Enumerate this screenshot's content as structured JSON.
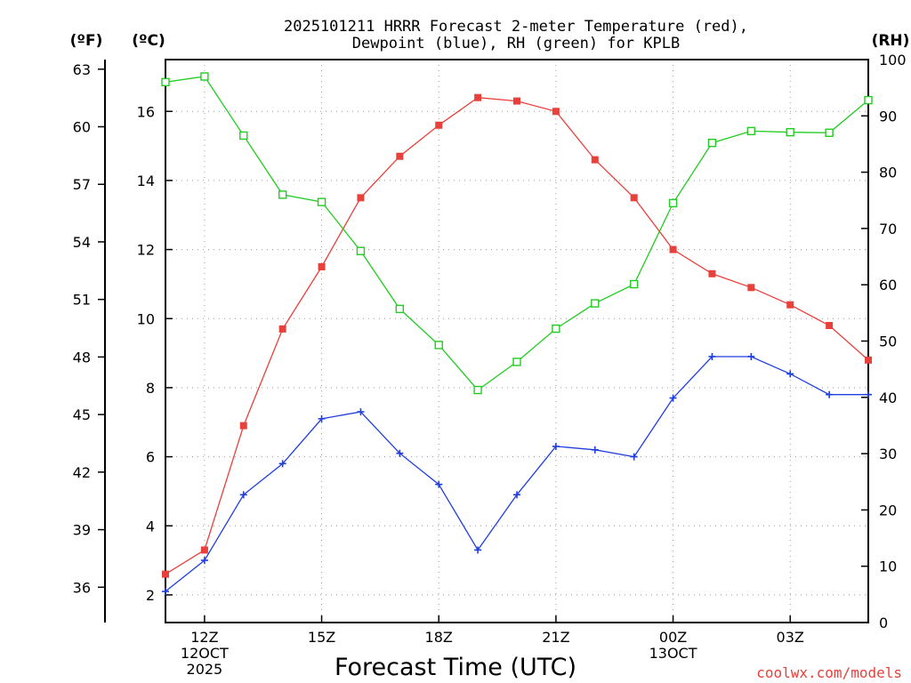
{
  "chart_data": {
    "type": "line",
    "title_lines": [
      "2025101211 HRRR Forecast 2-meter Temperature (red),",
      "Dewpoint (blue), RH (green) for KPLB"
    ],
    "xlabel": "Forecast Time (UTC)",
    "credit": "coolwx.com/models",
    "units": {
      "fahrenheit": "(ºF)",
      "celsius": "(ºC)",
      "rh": "(RH)"
    },
    "x_hours": [
      11,
      12,
      13,
      14,
      15,
      16,
      17,
      18,
      19,
      20,
      21,
      22,
      23,
      24,
      25,
      26,
      27,
      28,
      29
    ],
    "xlim": [
      11,
      29
    ],
    "x_ticks": [
      {
        "hour": 12,
        "lines": [
          "12Z",
          "12OCT",
          "2025"
        ]
      },
      {
        "hour": 15,
        "lines": [
          "15Z"
        ]
      },
      {
        "hour": 18,
        "lines": [
          "18Z"
        ]
      },
      {
        "hour": 21,
        "lines": [
          "21Z"
        ]
      },
      {
        "hour": 24,
        "lines": [
          "00Z",
          "13OCT"
        ]
      },
      {
        "hour": 27,
        "lines": [
          "03Z"
        ]
      }
    ],
    "celsius_axis": {
      "ylim": [
        1.2,
        17.5
      ],
      "ticks": [
        2,
        4,
        6,
        8,
        10,
        12,
        14,
        16
      ]
    },
    "fahrenheit_axis": {
      "ticks": [
        36,
        39,
        42,
        45,
        48,
        51,
        54,
        57,
        60,
        63
      ]
    },
    "rh_axis": {
      "ylim": [
        0,
        100
      ],
      "ticks": [
        0,
        10,
        20,
        30,
        40,
        50,
        60,
        70,
        80,
        90,
        100
      ]
    },
    "series": [
      {
        "name": "Temperature",
        "axis": "celsius",
        "color": "#e8403a",
        "marker": "filled-square",
        "values": [
          2.6,
          3.3,
          6.9,
          9.7,
          11.5,
          13.5,
          14.7,
          15.6,
          16.4,
          16.3,
          16.0,
          14.6,
          13.5,
          12.0,
          11.3,
          10.9,
          10.4,
          9.8,
          8.8
        ]
      },
      {
        "name": "Dewpoint",
        "axis": "celsius",
        "color": "#1e3ee0",
        "marker": "plus",
        "values": [
          2.1,
          3.0,
          4.9,
          5.8,
          7.1,
          7.3,
          6.1,
          5.2,
          3.3,
          4.9,
          6.3,
          6.2,
          6.0,
          7.7,
          8.9,
          8.9,
          8.4,
          7.8,
          7.8
        ]
      },
      {
        "name": "Relative Humidity",
        "axis": "rh",
        "color": "#22cc22",
        "marker": "open-square",
        "values": [
          96,
          97,
          86.5,
          76,
          74.7,
          66,
          55.7,
          49.3,
          41.3,
          46.3,
          52.2,
          56.7,
          60.1,
          74.5,
          85.2,
          87.3,
          87.1,
          87,
          92.8
        ]
      }
    ]
  }
}
